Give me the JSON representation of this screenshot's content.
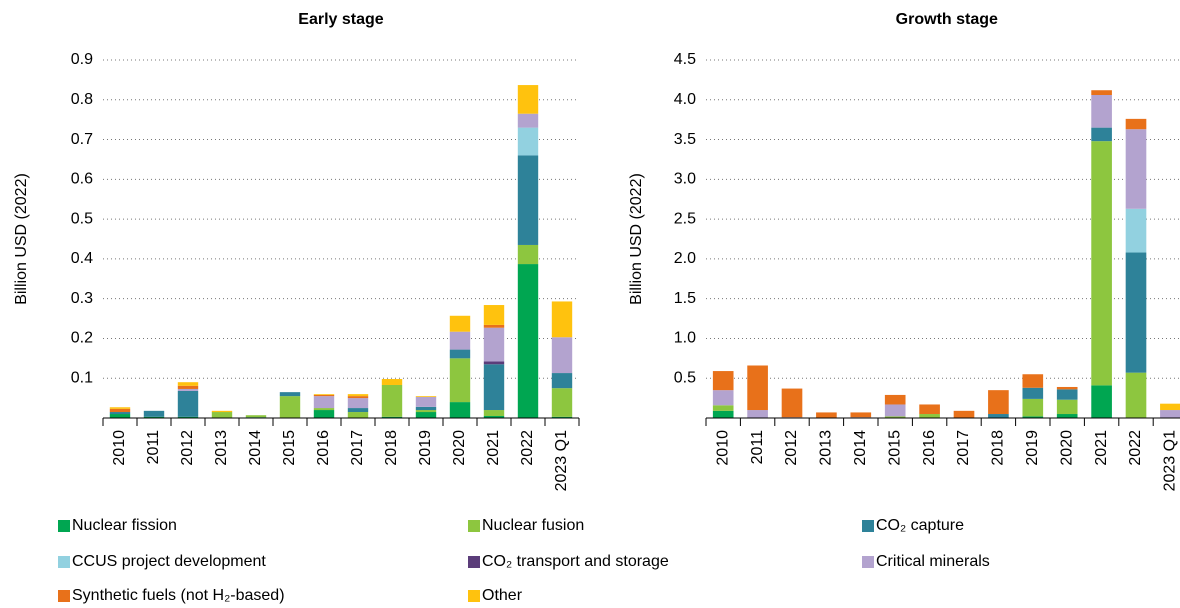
{
  "chart_data": [
    {
      "type": "bar",
      "title": "Early stage",
      "ylabel": "Billion USD (2022)",
      "categories": [
        "2010",
        "2011",
        "2012",
        "2013",
        "2014",
        "2015",
        "2016",
        "2017",
        "2018",
        "2019",
        "2020",
        "2021",
        "2022",
        "2023 Q1"
      ],
      "ylim": [
        0,
        0.9
      ],
      "yticks": [
        0.1,
        0.2,
        0.3,
        0.4,
        0.5,
        0.6,
        0.7,
        0.8,
        0.9
      ],
      "grid": true,
      "stacked": true,
      "series": [
        {
          "name": "Nuclear fission",
          "color": "#00a651",
          "values": [
            0.01,
            0.003,
            0.003,
            0,
            0.002,
            0,
            0.02,
            0,
            0.003,
            0.015,
            0.04,
            0.005,
            0.387,
            0.003
          ]
        },
        {
          "name": "Nuclear fusion",
          "color": "#8dc63f",
          "values": [
            0,
            0,
            0,
            0.015,
            0.005,
            0.055,
            0.005,
            0.015,
            0.08,
            0.005,
            0.11,
            0.015,
            0.048,
            0.072
          ]
        },
        {
          "name": "CO₂ capture",
          "color": "#2e8299",
          "values": [
            0.005,
            0.015,
            0.065,
            0,
            0,
            0.01,
            0,
            0.01,
            0,
            0.008,
            0.022,
            0.115,
            0.225,
            0.038
          ]
        },
        {
          "name": "CCUS project development",
          "color": "#92d1e0",
          "values": [
            0,
            0,
            0,
            0,
            0,
            0,
            0,
            0,
            0,
            0,
            0,
            0,
            0.07,
            0
          ]
        },
        {
          "name": "CO₂ transport and storage",
          "color": "#5b3d7a",
          "values": [
            0,
            0,
            0,
            0,
            0,
            0,
            0,
            0,
            0,
            0,
            0,
            0.007,
            0,
            0
          ]
        },
        {
          "name": "Critical minerals",
          "color": "#b3a3cf",
          "values": [
            0,
            0,
            0.005,
            0,
            0,
            0,
            0.03,
            0.025,
            0,
            0.025,
            0.045,
            0.085,
            0.035,
            0.09
          ]
        },
        {
          "name": "Synthetic fuels (not H₂-based)",
          "color": "#e8711a",
          "values": [
            0.008,
            0,
            0.008,
            0,
            0,
            0,
            0.003,
            0.005,
            0,
            0,
            0,
            0.007,
            0,
            0
          ]
        },
        {
          "name": "Other",
          "color": "#ffc20e",
          "values": [
            0.004,
            0,
            0.009,
            0.003,
            0,
            0,
            0.002,
            0.005,
            0.015,
            0.002,
            0.04,
            0.05,
            0.072,
            0.09
          ]
        }
      ]
    },
    {
      "type": "bar",
      "title": "Growth stage",
      "ylabel": "Billion USD (2022)",
      "categories": [
        "2010",
        "2011",
        "2012",
        "2013",
        "2014",
        "2015",
        "2016",
        "2017",
        "2018",
        "2019",
        "2020",
        "2021",
        "2022",
        "2023 Q1"
      ],
      "ylim": [
        0,
        4.5
      ],
      "yticks": [
        0.5,
        {
          "value": 1,
          "label": "1.0"
        },
        1.5,
        {
          "value": 2,
          "label": "2.0"
        },
        2.5,
        {
          "value": 3,
          "label": "3.0"
        },
        3.5,
        {
          "value": 4,
          "label": "4.0"
        },
        4.5
      ],
      "grid": true,
      "stacked": true,
      "series": [
        {
          "values": [
            0.09,
            0,
            0,
            0,
            0,
            0,
            0,
            0,
            0,
            0.02,
            0.05,
            0.41,
            0,
            0
          ]
        },
        {
          "values": [
            0.07,
            0,
            0,
            0,
            0,
            0.02,
            0.05,
            0,
            0,
            0.22,
            0.18,
            3.07,
            0.57,
            0
          ]
        },
        {
          "values": [
            0,
            0,
            0,
            0,
            0,
            0,
            0,
            0,
            0.05,
            0.14,
            0.13,
            0.17,
            1.51,
            0
          ]
        },
        {
          "values": [
            0,
            0,
            0,
            0,
            0,
            0,
            0,
            0,
            0,
            0,
            0,
            0,
            0.55,
            0
          ]
        },
        {
          "values": [
            0,
            0,
            0,
            0,
            0,
            0,
            0,
            0,
            0,
            0,
            0,
            0,
            0,
            0
          ]
        },
        {
          "values": [
            0.19,
            0.1,
            0.01,
            0,
            0.01,
            0.15,
            0,
            0,
            0,
            0,
            0,
            0.41,
            1.0,
            0.1
          ]
        },
        {
          "values": [
            0.24,
            0.56,
            0.36,
            0.07,
            0.06,
            0.12,
            0.12,
            0.09,
            0.3,
            0.17,
            0.03,
            0.06,
            0.13,
            0
          ]
        },
        {
          "values": [
            0,
            0,
            0,
            0,
            0,
            0,
            0,
            0,
            0,
            0,
            0,
            0,
            0,
            0.08
          ]
        }
      ]
    }
  ]
}
